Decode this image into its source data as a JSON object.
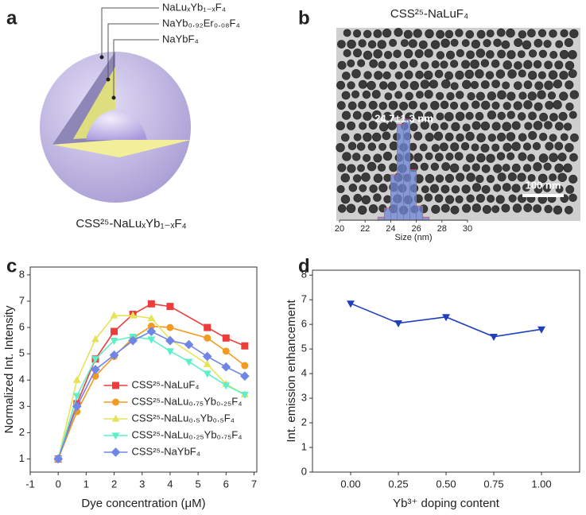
{
  "schematic": {
    "panel_label": "a",
    "title": "CSS²⁵-NaLuₓYb₁₋ₓF₄",
    "layers": [
      "NaLuₓYb₁₋ₓF₄",
      "NaYb₀.₉₂Er₀.₀₈F₄",
      "NaYbF₄"
    ]
  },
  "chart_data": [
    {
      "type": "histogram",
      "panel_label": "b",
      "title": "CSS²⁵-NaLuF₄",
      "annotation": "24.7±1.3 nm",
      "scale_bar": "100 nm",
      "xlabel": "Size (nm)",
      "xlim": [
        20,
        30
      ],
      "xticks": [
        20,
        22,
        24,
        26,
        28,
        30
      ],
      "bins": [
        23,
        23.5,
        24,
        24.5,
        25,
        25.5,
        26,
        26.5,
        27
      ],
      "values": [
        3,
        12,
        45,
        95,
        100,
        50,
        14,
        3
      ],
      "color": "#6f86d6",
      "edgecolor": "#e0506a"
    },
    {
      "type": "line",
      "panel_label": "c",
      "xlabel": "Dye concentration (μM)",
      "ylabel": "Normalized Int. Intensity",
      "xlim": [
        -1,
        7.1
      ],
      "xticks": [
        -1,
        0,
        1,
        2,
        3,
        4,
        5,
        6,
        7
      ],
      "ylim": [
        0.5,
        8.3
      ],
      "yticks": [
        1,
        2,
        3,
        4,
        5,
        6,
        7,
        8
      ],
      "legend": "lower center",
      "series": [
        {
          "name": "CSS²⁵-NaLuF₄",
          "color": "#ee3b3b",
          "marker": "square",
          "x": [
            0,
            0.67,
            1.33,
            2,
            2.67,
            3.33,
            4,
            5.33,
            6,
            6.67
          ],
          "values": [
            1,
            3.1,
            4.8,
            5.85,
            6.5,
            6.9,
            6.8,
            6.0,
            5.6,
            5.3
          ]
        },
        {
          "name": "CSS²⁵-NaLu₀.₇₅Yb₀.₂₅F₄",
          "color": "#f39a22",
          "marker": "circle",
          "x": [
            0,
            0.67,
            1.33,
            2,
            2.67,
            3.33,
            4,
            5.33,
            6,
            6.67
          ],
          "values": [
            1,
            2.8,
            4.15,
            4.9,
            5.6,
            6.05,
            6.0,
            5.6,
            5.1,
            4.55
          ]
        },
        {
          "name": "CSS²⁵-NaLu₀.₅Yb₀.₅F₄",
          "color": "#e6e35a",
          "marker": "triangle-up",
          "x": [
            0,
            0.67,
            1.33,
            2,
            2.67,
            3.33,
            4,
            5.33,
            6,
            6.67
          ],
          "values": [
            1,
            4.0,
            5.55,
            6.45,
            6.45,
            6.35,
            5.55,
            4.6,
            3.85,
            3.45
          ]
        },
        {
          "name": "CSS²⁵-NaLu₀.₂₅Yb₀.₇₅F₄",
          "color": "#5cf0c8",
          "marker": "triangle-down",
          "x": [
            0,
            0.67,
            1.33,
            2,
            2.67,
            3.33,
            4,
            4.67,
            5.33,
            6,
            6.67
          ],
          "values": [
            1,
            3.4,
            4.8,
            5.5,
            5.65,
            5.55,
            5.1,
            4.7,
            4.25,
            3.8,
            3.45
          ]
        },
        {
          "name": "CSS²⁵-NaYbF₄",
          "color": "#6f86e6",
          "marker": "diamond",
          "x": [
            0,
            0.67,
            1.33,
            2,
            2.67,
            3.33,
            4,
            4.67,
            5.33,
            6,
            6.67
          ],
          "values": [
            1,
            3.0,
            4.4,
            4.95,
            5.5,
            5.85,
            5.5,
            5.35,
            4.9,
            4.5,
            4.15
          ]
        }
      ]
    },
    {
      "type": "line",
      "panel_label": "d",
      "xlabel": "Yb³⁺ doping content",
      "ylabel": "Int. emission enhancement",
      "xlim": [
        -0.2,
        1.2
      ],
      "xticks": [
        {
          "value": 0,
          "label": "0.00"
        },
        {
          "value": 0.25,
          "label": "0.25"
        },
        {
          "value": 0.5,
          "label": "0.50"
        },
        {
          "value": 0.75,
          "label": "0.75"
        },
        {
          "value": 1,
          "label": "1.00"
        }
      ],
      "ylim": [
        0,
        8.2
      ],
      "yticks": [
        0,
        1,
        2,
        3,
        4,
        5,
        6,
        7,
        8
      ],
      "series": [
        {
          "color": "#1f3fbf",
          "marker": "triangle-down",
          "x": [
            0,
            0.25,
            0.5,
            0.75,
            1
          ],
          "values": [
            6.85,
            6.05,
            6.3,
            5.5,
            5.8
          ]
        }
      ]
    }
  ]
}
